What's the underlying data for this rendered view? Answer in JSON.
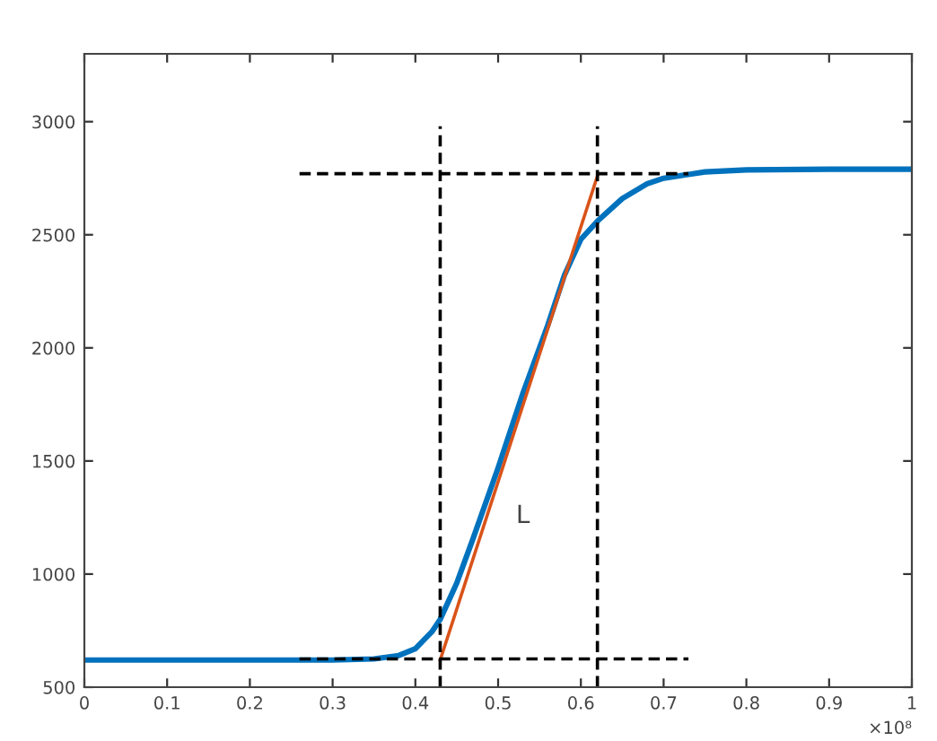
{
  "chart_data": {
    "type": "line",
    "xlim": [
      0,
      1
    ],
    "ylim": [
      500,
      3300
    ],
    "xticks": [
      0,
      0.1,
      0.2,
      0.3,
      0.4,
      0.5,
      0.6,
      0.7,
      0.8,
      0.9,
      1
    ],
    "yticks": [
      500,
      1000,
      1500,
      2000,
      2500,
      3000
    ],
    "grid": false,
    "legend": false,
    "series": [
      {
        "color": "#0072bd",
        "line_style": "solid",
        "x": [
          0,
          0.3,
          0.35,
          0.38,
          0.4,
          0.42,
          0.43,
          0.45,
          0.47,
          0.5,
          0.53,
          0.56,
          0.58,
          0.6,
          0.62,
          0.65,
          0.68,
          0.7,
          0.75,
          0.8,
          0.9,
          1
        ],
        "values": [
          620,
          620,
          625,
          640,
          670,
          745,
          800,
          960,
          1160,
          1470,
          1800,
          2100,
          2320,
          2480,
          2560,
          2660,
          2725,
          2750,
          2778,
          2787,
          2790,
          2790
        ]
      },
      {
        "color": "#d95319",
        "line_style": "solid",
        "x": [
          0.43,
          0.62
        ],
        "values": [
          620,
          2760
        ]
      },
      {
        "color": "#000000",
        "line_style": "dashed",
        "x": [
          0.26,
          0.73
        ],
        "values": [
          2770,
          2770
        ]
      },
      {
        "color": "#000000",
        "line_style": "dashed",
        "x": [
          0.26,
          0.73
        ],
        "values": [
          625,
          625
        ]
      },
      {
        "color": "#000000",
        "line_style": "dashed",
        "x": [
          0.43,
          0.43
        ],
        "values": [
          500,
          2980
        ]
      },
      {
        "color": "#000000",
        "line_style": "dashed",
        "x": [
          0.62,
          0.62
        ],
        "values": [
          500,
          2980
        ]
      }
    ],
    "annotations": [
      "L",
      "×10⁸"
    ]
  }
}
